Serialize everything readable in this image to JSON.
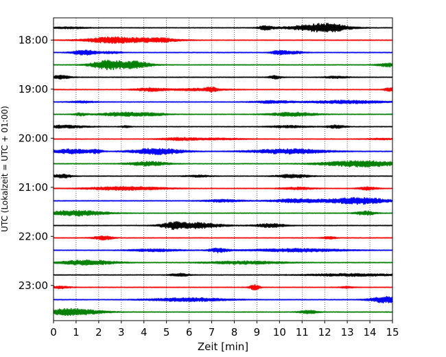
{
  "chart_data": {
    "type": "line",
    "title": "",
    "xlabel": "Zeit  [min]",
    "ylabel": "UTC (Lokalzeit = UTC + 01:00)",
    "xlim": [
      0,
      15
    ],
    "x_ticks": [
      "0",
      "1",
      "2",
      "3",
      "4",
      "5",
      "6",
      "7",
      "8",
      "9",
      "10",
      "11",
      "12",
      "13",
      "14",
      "15"
    ],
    "y_tick_labels": [
      "18:00",
      "19:00",
      "20:00",
      "21:00",
      "22:00",
      "23:00"
    ],
    "grid": {
      "x": true,
      "y": false,
      "style": "dotted"
    },
    "trace_interval_minutes": 15,
    "trace_colors": [
      "#000000",
      "#ff0000",
      "#0000ff",
      "#008000"
    ],
    "series": [
      {
        "start": "17:45",
        "color_index": 0,
        "bursts": [
          [
            0.7,
            0.5,
            0.6
          ],
          [
            9.4,
            1.3,
            0.25
          ],
          [
            11.7,
            2.2,
            0.9
          ],
          [
            12.3,
            1.0,
            0.5
          ]
        ]
      },
      {
        "start": "18:00",
        "color_index": 1,
        "bursts": [
          [
            2.5,
            1.3,
            0.8
          ],
          [
            3.6,
            1.0,
            1.2
          ],
          [
            4.8,
            0.8,
            0.5
          ]
        ]
      },
      {
        "start": "18:15",
        "color_index": 2,
        "bursts": [
          [
            1.4,
            1.6,
            0.4
          ],
          [
            2.6,
            0.6,
            0.3
          ],
          [
            10.0,
            1.4,
            0.25
          ],
          [
            10.7,
            0.8,
            0.3
          ]
        ]
      },
      {
        "start": "18:30",
        "color_index": 3,
        "bursts": [
          [
            2.4,
            3.0,
            0.5
          ],
          [
            3.6,
            2.2,
            0.5
          ],
          [
            14.8,
            1.3,
            0.3
          ]
        ]
      },
      {
        "start": "18:45",
        "color_index": 0,
        "bursts": [
          [
            0.3,
            1.2,
            0.3
          ],
          [
            9.8,
            1.0,
            0.2
          ],
          [
            12.5,
            0.6,
            0.4
          ]
        ]
      },
      {
        "start": "19:00",
        "color_index": 1,
        "bursts": [
          [
            4.3,
            1.0,
            0.5
          ],
          [
            6.5,
            0.8,
            0.8
          ],
          [
            7.0,
            1.3,
            0.15
          ],
          [
            14.9,
            1.1,
            0.2
          ]
        ]
      },
      {
        "start": "19:15",
        "color_index": 2,
        "bursts": [
          [
            1.3,
            0.6,
            0.4
          ],
          [
            9.7,
            0.8,
            0.6
          ],
          [
            13.0,
            1.0,
            1.2
          ]
        ]
      },
      {
        "start": "19:30",
        "color_index": 3,
        "bursts": [
          [
            1.2,
            0.9,
            0.2
          ],
          [
            3.2,
            1.3,
            0.8
          ],
          [
            4.5,
            0.6,
            0.4
          ],
          [
            10.6,
            1.3,
            0.7
          ]
        ]
      },
      {
        "start": "19:45",
        "color_index": 0,
        "bursts": [
          [
            0.5,
            0.9,
            0.7
          ],
          [
            3.2,
            0.7,
            0.15
          ],
          [
            10.4,
            0.7,
            0.6
          ],
          [
            12.5,
            1.0,
            0.3
          ]
        ]
      },
      {
        "start": "20:00",
        "color_index": 1,
        "bursts": [
          [
            5.6,
            0.8,
            0.6
          ],
          [
            7.3,
            0.5,
            0.8
          ],
          [
            14.5,
            0.4,
            0.5
          ]
        ]
      },
      {
        "start": "20:15",
        "color_index": 2,
        "bursts": [
          [
            0.8,
            1.5,
            0.6
          ],
          [
            1.9,
            1.0,
            0.2
          ],
          [
            4.6,
            2.0,
            0.8
          ],
          [
            10.4,
            1.6,
            1.2
          ]
        ]
      },
      {
        "start": "20:30",
        "color_index": 3,
        "bursts": [
          [
            4.2,
            1.4,
            0.6
          ],
          [
            13.6,
            2.0,
            1.2
          ]
        ]
      },
      {
        "start": "20:45",
        "color_index": 0,
        "bursts": [
          [
            0.4,
            1.2,
            0.3
          ],
          [
            6.4,
            0.6,
            0.4
          ],
          [
            10.6,
            1.2,
            0.5
          ]
        ]
      },
      {
        "start": "21:00",
        "color_index": 1,
        "bursts": [
          [
            3.2,
            1.2,
            1.2
          ],
          [
            10.8,
            0.8,
            0.5
          ],
          [
            13.9,
            1.0,
            0.3
          ]
        ]
      },
      {
        "start": "21:15",
        "color_index": 2,
        "bursts": [
          [
            7.5,
            0.8,
            0.6
          ],
          [
            10.8,
            1.2,
            0.8
          ],
          [
            13.5,
            2.2,
            0.9
          ]
        ]
      },
      {
        "start": "21:30",
        "color_index": 3,
        "bursts": [
          [
            1.0,
            1.8,
            0.9
          ],
          [
            13.8,
            1.4,
            0.3
          ]
        ]
      },
      {
        "start": "21:45",
        "color_index": 0,
        "bursts": [
          [
            5.3,
            1.6,
            0.4
          ],
          [
            6.3,
            1.8,
            0.8
          ],
          [
            9.6,
            1.2,
            0.5
          ]
        ]
      },
      {
        "start": "22:00",
        "color_index": 1,
        "bursts": [
          [
            2.2,
            1.3,
            0.3
          ],
          [
            12.2,
            0.8,
            0.2
          ]
        ]
      },
      {
        "start": "22:15",
        "color_index": 2,
        "bursts": [
          [
            4.5,
            0.8,
            0.8
          ],
          [
            7.3,
            1.4,
            0.3
          ],
          [
            10.8,
            1.0,
            1.5
          ]
        ]
      },
      {
        "start": "22:30",
        "color_index": 3,
        "bursts": [
          [
            1.5,
            1.6,
            0.9
          ],
          [
            8.5,
            1.0,
            1.2
          ]
        ]
      },
      {
        "start": "22:45",
        "color_index": 0,
        "bursts": [
          [
            5.6,
            1.0,
            0.3
          ],
          [
            13.2,
            0.8,
            1.4
          ]
        ]
      },
      {
        "start": "23:00",
        "color_index": 1,
        "bursts": [
          [
            0.3,
            0.8,
            0.3
          ],
          [
            8.9,
            1.8,
            0.15
          ],
          [
            13.0,
            0.6,
            0.2
          ]
        ]
      },
      {
        "start": "23:15",
        "color_index": 2,
        "bursts": [
          [
            6.0,
            1.2,
            1.2
          ],
          [
            14.7,
            2.0,
            0.5
          ]
        ]
      },
      {
        "start": "23:30",
        "color_index": 3,
        "bursts": [
          [
            0.8,
            2.2,
            0.9
          ],
          [
            11.3,
            1.1,
            0.3
          ]
        ]
      }
    ]
  }
}
